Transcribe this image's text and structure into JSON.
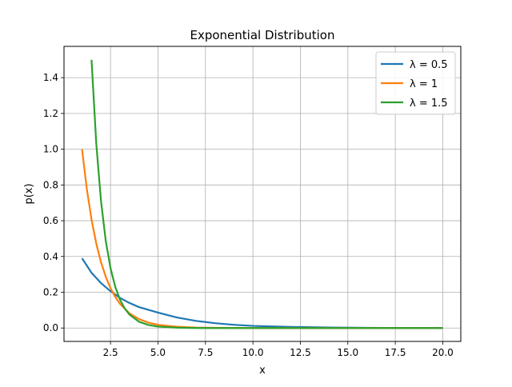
{
  "chart_data": {
    "type": "line",
    "title": "Exponential Distribution",
    "xlabel": "x",
    "ylabel": "p(x)",
    "xlim": [
      0.05,
      20.95
    ],
    "ylim": [
      -0.075,
      1.575
    ],
    "x_ticks": [
      2.5,
      5.0,
      7.5,
      10.0,
      12.5,
      15.0,
      17.5,
      20.0
    ],
    "x_tick_labels": [
      "2.5",
      "5.0",
      "7.5",
      "10.0",
      "12.5",
      "15.0",
      "17.5",
      "20.0"
    ],
    "y_ticks": [
      0.0,
      0.2,
      0.4,
      0.6,
      0.8,
      1.0,
      1.2,
      1.4
    ],
    "y_tick_labels": [
      "0.0",
      "0.2",
      "0.4",
      "0.6",
      "0.8",
      "1.0",
      "1.2",
      "1.4"
    ],
    "grid": true,
    "legend_position": "top-right",
    "series": [
      {
        "name": "λ = 0.5",
        "color": "#1f77b4",
        "x": [
          1,
          1.5,
          2,
          2.5,
          3,
          3.5,
          4,
          5,
          6,
          7,
          8,
          9,
          10,
          12,
          14,
          16,
          18,
          20
        ],
        "y": [
          0.39,
          0.309,
          0.251,
          0.206,
          0.168,
          0.14,
          0.117,
          0.086,
          0.059,
          0.04,
          0.027,
          0.018,
          0.012,
          0.006,
          0.003,
          0.001,
          0.0,
          0.0
        ]
      },
      {
        "name": "λ = 1",
        "color": "#ff7f0e",
        "x": [
          1,
          1.25,
          1.5,
          1.75,
          2,
          2.25,
          2.5,
          2.75,
          3,
          3.5,
          4,
          4.5,
          5,
          6,
          7,
          8,
          10,
          12,
          15,
          20
        ],
        "y": [
          1.0,
          0.779,
          0.607,
          0.472,
          0.368,
          0.287,
          0.223,
          0.174,
          0.135,
          0.082,
          0.05,
          0.03,
          0.018,
          0.007,
          0.002,
          0.001,
          0.0,
          0.0,
          0.0,
          0.0
        ]
      },
      {
        "name": "λ = 1.5",
        "color": "#2ca02c",
        "x": [
          1.5,
          1.75,
          2,
          2.25,
          2.5,
          2.75,
          3,
          3.25,
          3.5,
          4,
          4.5,
          5,
          6,
          7,
          8,
          10,
          12,
          15,
          20
        ],
        "y": [
          1.5,
          1.031,
          0.709,
          0.487,
          0.335,
          0.23,
          0.158,
          0.109,
          0.075,
          0.035,
          0.017,
          0.008,
          0.002,
          0.0,
          0.0,
          0.0,
          0.0,
          0.0,
          0.0
        ]
      }
    ]
  }
}
